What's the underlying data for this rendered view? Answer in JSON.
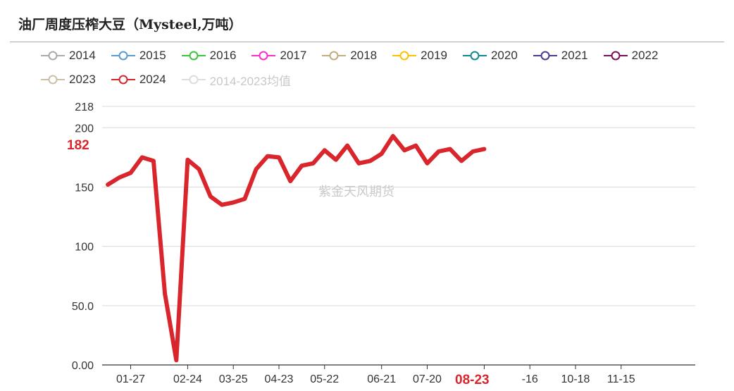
{
  "title": "油厂周度压榨大豆（Mysteel,万吨）",
  "legend": [
    {
      "label": "2014",
      "color": "#aaaaaa"
    },
    {
      "label": "2015",
      "color": "#5b9bd5"
    },
    {
      "label": "2016",
      "color": "#3ec43e"
    },
    {
      "label": "2017",
      "color": "#ff2ccc"
    },
    {
      "label": "2018",
      "color": "#c0ae7c"
    },
    {
      "label": "2019",
      "color": "#ffc000"
    },
    {
      "label": "2020",
      "color": "#11888c"
    },
    {
      "label": "2021",
      "color": "#4b3a90"
    },
    {
      "label": "2022",
      "color": "#7a1055"
    },
    {
      "label": "2023",
      "color": "#cdbfa6"
    },
    {
      "label": "2024",
      "color": "#d9262c"
    },
    {
      "label": "2014-2023均值",
      "color": "#dddddd"
    }
  ],
  "watermark": "紫金天风期货",
  "highlight": {
    "y_value": "182",
    "x_label": "08-23"
  },
  "chart_data": {
    "type": "line",
    "ylim": [
      0,
      218
    ],
    "y_ticks": [
      "218",
      "200",
      "150",
      "100",
      "50.0",
      "0.00"
    ],
    "x_ticks": [
      "01-27",
      "02-24",
      "03-25",
      "04-23",
      "05-22",
      "06-21",
      "07-20",
      "08-23",
      "-16",
      "10-18",
      "11-15"
    ],
    "x_weeks": 52,
    "series": [
      {
        "name": "2024",
        "values": [
          152,
          158,
          162,
          175,
          172,
          60,
          4,
          173,
          165,
          142,
          135,
          137,
          140,
          165,
          176,
          175,
          155,
          168,
          170,
          181,
          173,
          185,
          170,
          172,
          178,
          193,
          181,
          185,
          170,
          180,
          182,
          172,
          180,
          182
        ]
      }
    ]
  }
}
